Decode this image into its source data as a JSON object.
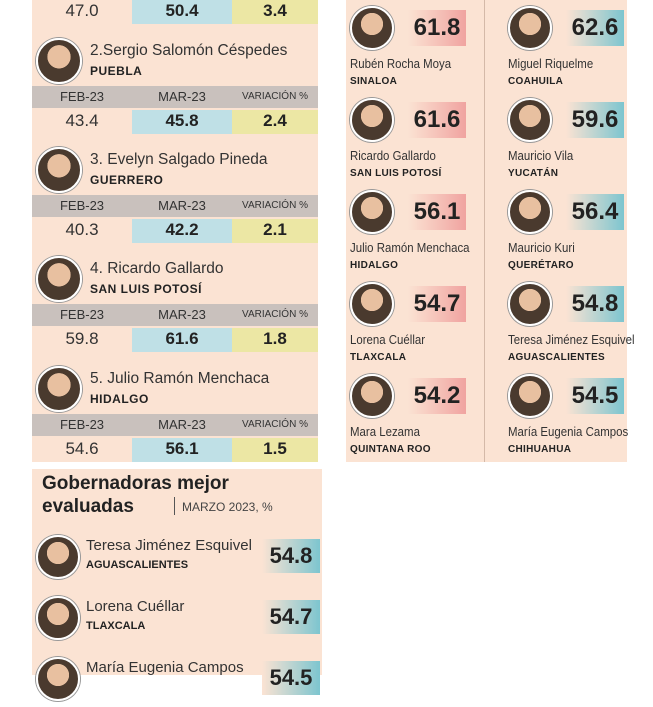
{
  "left": {
    "top_row": {
      "feb": "47.0",
      "mar": "50.4",
      "var": "3.4"
    },
    "entries": [
      {
        "name": "2.Sergio Salomón Céspedes",
        "state": "PUEBLA",
        "h_feb": "FEB-23",
        "h_mar": "MAR-23",
        "h_var": "VARIACIÓN %",
        "feb": "43.4",
        "mar": "45.8",
        "var": "2.4"
      },
      {
        "name": "3. Evelyn Salgado Pineda",
        "state": "GUERRERO",
        "h_feb": "FEB-23",
        "h_mar": "MAR-23",
        "h_var": "VARIACIÓN %",
        "feb": "40.3",
        "mar": "42.2",
        "var": "2.1"
      },
      {
        "name": "4. Ricardo Gallardo",
        "state": "SAN LUIS POTOSÍ",
        "h_feb": "FEB-23",
        "h_mar": "MAR-23",
        "h_var": "VARIACIÓN %",
        "feb": "59.8",
        "mar": "61.6",
        "var": "1.8"
      },
      {
        "name": "5. Julio Ramón Menchaca",
        "state": "HIDALGO",
        "h_feb": "FEB-23",
        "h_mar": "MAR-23",
        "h_var": "VARIACIÓN %",
        "feb": "54.6",
        "mar": "56.1",
        "var": "1.5"
      }
    ]
  },
  "right": {
    "cells": [
      {
        "name": "Rubén Rocha Moya",
        "state": "SINALOA",
        "score": "61.8",
        "color": "#f0a3a0"
      },
      {
        "name": "Miguel Riquelme",
        "state": "COAHUILA",
        "score": "62.6",
        "color": "#7dc5cf"
      },
      {
        "name": "Ricardo Gallardo",
        "state": "SAN LUIS POTOSÍ",
        "score": "61.6",
        "color": "#f0a3a0"
      },
      {
        "name": "Mauricio Vila",
        "state": "YUCATÁN",
        "score": "59.6",
        "color": "#7dc5cf"
      },
      {
        "name": "Julio Ramón Menchaca",
        "state": "HIDALGO",
        "score": "56.1",
        "color": "#f0a3a0"
      },
      {
        "name": "Mauricio Kuri",
        "state": "QUERÉTARO",
        "score": "56.4",
        "color": "#7dc5cf"
      },
      {
        "name": "Lorena Cuéllar",
        "state": "TLAXCALA",
        "score": "54.7",
        "color": "#f0a3a0"
      },
      {
        "name": "Teresa Jiménez Esquivel",
        "state": "AGUASCALIENTES",
        "score": "54.8",
        "color": "#7dc5cf"
      },
      {
        "name": "Mara Lezama",
        "state": "QUINTANA ROO",
        "score": "54.2",
        "color": "#f0a3a0"
      },
      {
        "name": "María Eugenia Campos",
        "state": "CHIHUAHUA",
        "score": "54.5",
        "color": "#7dc5cf"
      }
    ]
  },
  "bottom": {
    "title_line1": "Gobernadoras mejor",
    "title_line2": "evaluadas",
    "subtitle": "MARZO 2023, %",
    "rows": [
      {
        "name": "Teresa Jiménez Esquivel",
        "state": "AGUASCALIENTES",
        "score": "54.8"
      },
      {
        "name": "Lorena Cuéllar",
        "state": "TLAXCALA",
        "score": "54.7"
      },
      {
        "name": "María Eugenia Campos",
        "state": "",
        "score": "54.5"
      }
    ]
  }
}
